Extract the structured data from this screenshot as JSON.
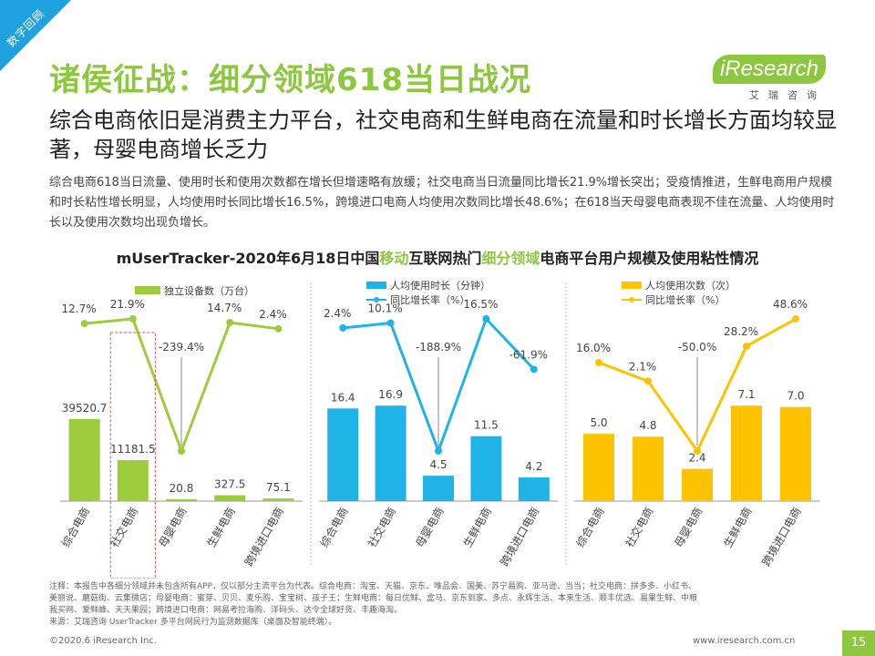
{
  "corner_tag": "数字回顾",
  "title": "诸侯征战：细分领域618当日战况",
  "logo": {
    "main": "iResearch",
    "sub": "艾瑞咨询"
  },
  "subtitle": "综合电商依旧是消费主力平台，社交电商和生鲜电商在流量和时长增长方面均较显著，母婴电商增长乏力",
  "summary": "综合电商618当日流量、使用时长和使用次数都在增长但增速略有放缓；社交电商当日流量同比增长21.9%增长突出；受疫情推进，生鲜电商用户规模和时长粘性增长明显，人均使用时长同比增长16.5%，跨境进口电商人均使用次数同比增长48.6%；在618当天母婴电商表现不佳在流量、人均使用时长以及使用次数均出现负增长。",
  "chart_heading": {
    "part1": "mUserTracker-2020年6月18日中国",
    "hl1": "移动",
    "part2": "互联网热门",
    "hl2": "细分领域",
    "part3": "电商平台用户规模及使用粘性情况"
  },
  "colors": {
    "green": "#9ccc3c",
    "blue": "#1fb3e8",
    "yellow": "#fdc300",
    "brand": "#8dc63f"
  },
  "chart_data": [
    {
      "type": "bar+line",
      "categories": [
        "综合电商",
        "社交电商",
        "母婴电商",
        "生鲜电商",
        "跨境进口电商"
      ],
      "bar_series": {
        "name": "独立设备数（万台）",
        "values": [
          39520.7,
          11181.5,
          20.8,
          327.5,
          75.1
        ],
        "labels": [
          "39520.7",
          "11181.5",
          "20.8",
          "327.5",
          "75.1"
        ]
      },
      "line_series": {
        "name": "",
        "values": [
          12.7,
          21.9,
          -239.4,
          14.7,
          2.4
        ],
        "labels": [
          "12.7%",
          "21.9%",
          "-239.4%",
          "14.7%",
          "2.4%"
        ]
      },
      "highlight_category": "社交电商"
    },
    {
      "type": "bar+line",
      "categories": [
        "综合电商",
        "社交电商",
        "母婴电商",
        "生鲜电商",
        "跨境进口电商"
      ],
      "bar_series": {
        "name": "人均使用时长（分钟）",
        "values": [
          16.4,
          16.9,
          4.5,
          11.5,
          4.2
        ],
        "labels": [
          "16.4",
          "16.9",
          "4.5",
          "11.5",
          "4.2"
        ]
      },
      "line_series": {
        "name": "同比增长率（%）",
        "values": [
          2.4,
          10.1,
          -188.9,
          16.5,
          -61.9
        ],
        "labels": [
          "2.4%",
          "10.1%",
          "-188.9%",
          "16.5%",
          "-61.9%"
        ]
      }
    },
    {
      "type": "bar+line",
      "categories": [
        "综合电商",
        "社交电商",
        "母婴电商",
        "生鲜电商",
        "跨境进口电商"
      ],
      "bar_series": {
        "name": "人均使用次数（次）",
        "values": [
          5.0,
          4.8,
          2.4,
          7.1,
          7.0
        ],
        "labels": [
          "5.0",
          "4.8",
          "2.4",
          "7.1",
          "7.0"
        ]
      },
      "line_series": {
        "name": "同比增长率（%）",
        "values": [
          16.0,
          2.1,
          -50.0,
          28.2,
          48.6
        ],
        "labels": [
          "16.0%",
          "2.1%",
          "-50.0%",
          "28.2%",
          "48.6%"
        ]
      }
    }
  ],
  "notes": {
    "line1": "注释：本报告中各细分领域并未包含所有APP，仅以部分主流平台为代表。综合电商：淘宝、天猫、京东、唯品会、国美、苏宁易购、亚马逊、当当；社交电商：拼多多、小红书、",
    "line2": "美丽说、蘑菇街、云集微店；母婴电商：蜜芽、贝贝、麦乐购、宝宝树、孩子王；生鲜电商：每日优鲜、盒马、京东到家、多点、永辉生活、本来生活、顺丰优选、易果生鲜、中粮",
    "line3": "我买网、爱鲜蜂、天天果园；跨境进口电商：网易考拉海购、洋码头、达令全球好货、丰趣海淘。",
    "source": "来源：艾瑞咨询 UserTracker 多平台网民行为监测数据库（桌面及智能终端）。"
  },
  "footer": {
    "copyright": "©2020.6 iResearch Inc.",
    "website": "www.iresearch.com.cn",
    "page": "15"
  }
}
